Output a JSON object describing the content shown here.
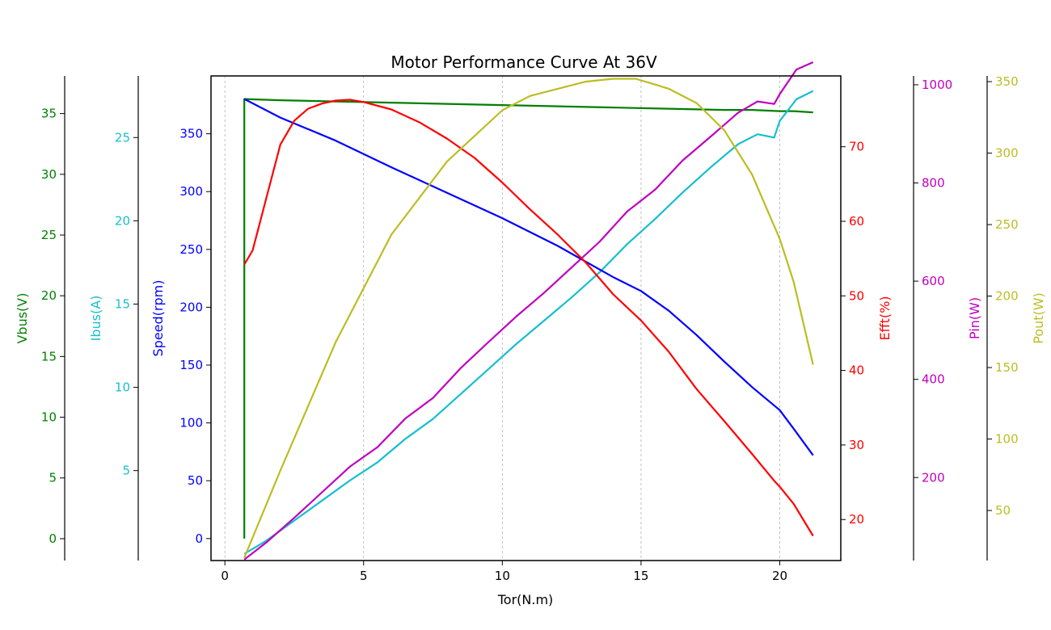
{
  "chart_data": {
    "type": "line",
    "title": "Motor Performance Curve At 36V",
    "xlabel": "Tor(N.m)",
    "xlim": [
      -0.5,
      22.2
    ],
    "xticks": [
      0,
      5,
      10,
      15,
      20
    ],
    "grid": "vertical-dashed",
    "axes": [
      {
        "id": "vbus",
        "label": "Vbus(V)",
        "color": "#008000",
        "ylim": [
          -1.8,
          38.1
        ],
        "ticks": [
          0,
          5,
          10,
          15,
          20,
          25,
          30,
          35
        ]
      },
      {
        "id": "ibus",
        "label": "Ibus(A)",
        "color": "#17becf",
        "ylim": [
          -0.4,
          28.7
        ],
        "ticks": [
          5,
          10,
          15,
          20,
          25
        ]
      },
      {
        "id": "speed",
        "label": "Speed(rpm)",
        "color": "#0000ff",
        "ylim": [
          -19,
          400
        ],
        "ticks": [
          0,
          50,
          100,
          150,
          200,
          250,
          300,
          350
        ]
      },
      {
        "id": "eff",
        "label": "Efft(%)",
        "color": "#ff0000",
        "ylim": [
          14.5,
          79.5
        ],
        "ticks": [
          20,
          30,
          40,
          50,
          60,
          70
        ]
      },
      {
        "id": "pin",
        "label": "Pin(W)",
        "color": "#bf00bf",
        "ylim": [
          31,
          1018
        ],
        "ticks": [
          200,
          400,
          600,
          800,
          1000
        ]
      },
      {
        "id": "pout",
        "label": "Pout(W)",
        "color": "#bcbd22",
        "ylim": [
          15,
          354
        ],
        "ticks": [
          50,
          100,
          150,
          200,
          250,
          300,
          350
        ]
      }
    ],
    "series": [
      {
        "axis": "vbus",
        "color": "#008000",
        "x": [
          0.7,
          0.7,
          2,
          4,
          6,
          8,
          10,
          12,
          14,
          16,
          18,
          19,
          20,
          20.5,
          21.2
        ],
        "y": [
          0,
          36.2,
          36.1,
          36.0,
          35.9,
          35.8,
          35.7,
          35.6,
          35.5,
          35.4,
          35.3,
          35.3,
          35.2,
          35.2,
          35.1
        ]
      },
      {
        "axis": "ibus",
        "color": "#17becf",
        "x": [
          0.7,
          1.5,
          2.5,
          3.5,
          4.5,
          5.5,
          6.5,
          7.5,
          8.5,
          9.5,
          10.5,
          11.5,
          12.5,
          13.5,
          14.5,
          15.5,
          16.5,
          17.5,
          18.5,
          19.2,
          19.8,
          20.0,
          20.6,
          21.2
        ],
        "y": [
          0,
          0.8,
          2.0,
          3.2,
          4.4,
          5.5,
          6.9,
          8.1,
          9.6,
          11.1,
          12.6,
          14.0,
          15.4,
          16.9,
          18.6,
          20.1,
          21.7,
          23.2,
          24.6,
          25.2,
          25.0,
          26.0,
          27.3,
          27.8
        ]
      },
      {
        "axis": "pin",
        "color": "#bf00bf",
        "x": [
          0.7,
          1.5,
          2.5,
          3.5,
          4.5,
          5.5,
          6.5,
          7.5,
          8.5,
          9.5,
          10.5,
          11.5,
          12.5,
          13.5,
          14.5,
          15.5,
          16.5,
          17.5,
          18.5,
          19.2,
          19.8,
          20.0,
          20.6,
          21.2
        ],
        "y": [
          33,
          68,
          118,
          170,
          222,
          262,
          320,
          362,
          423,
          476,
          528,
          576,
          628,
          680,
          742,
          786,
          846,
          894,
          943,
          966,
          961,
          981,
          1031,
          1046
        ]
      },
      {
        "axis": "speed",
        "color": "#0000ff",
        "x": [
          0.7,
          2,
          4,
          6,
          8,
          10,
          12,
          14,
          15,
          16,
          17,
          18,
          19,
          20,
          20.5,
          21.2
        ],
        "y": [
          380,
          364,
          344,
          321,
          299,
          277,
          253,
          226,
          214,
          197,
          176,
          153,
          131,
          111,
          95,
          72
        ]
      },
      {
        "axis": "eff",
        "color": "#ff0000",
        "x": [
          0.7,
          1.0,
          1.5,
          2.0,
          2.5,
          3.0,
          3.5,
          4.0,
          4.5,
          5.0,
          6.0,
          7.0,
          8.0,
          9.0,
          10.0,
          11.0,
          12.0,
          13.0,
          14.0,
          15.0,
          16.0,
          17.0,
          18.0,
          19.0,
          19.8,
          20.0,
          20.5,
          21.2
        ],
        "y": [
          54.2,
          56.1,
          63.2,
          70.3,
          73.5,
          75.1,
          75.8,
          76.2,
          76.3,
          76.0,
          75.0,
          73.3,
          71.1,
          68.5,
          65.2,
          61.6,
          58.2,
          54.5,
          50.2,
          46.7,
          42.5,
          37.5,
          33.2,
          28.8,
          25.2,
          24.4,
          22.1,
          17.8
        ]
      },
      {
        "axis": "pout",
        "color": "#bcbd22",
        "x": [
          0.7,
          2,
          4,
          6,
          8,
          10,
          11,
          12,
          13,
          14,
          14.8,
          15.5,
          16,
          17,
          18,
          19,
          20,
          20.5,
          21.2
        ],
        "y": [
          17,
          78,
          168,
          243,
          294,
          330,
          340,
          345,
          350,
          352,
          352,
          348,
          345,
          335,
          316,
          285,
          240,
          210,
          152
        ]
      }
    ]
  }
}
